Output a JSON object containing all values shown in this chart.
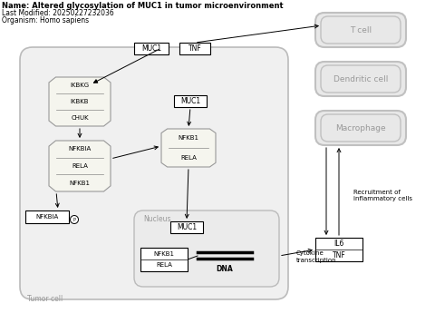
{
  "title_lines": [
    "Name: Altered glycosylation of MUC1 in tumor microenvironment",
    "Last Modified: 20250227232036",
    "Organism: Homo sapiens"
  ],
  "bg_color": "#ffffff",
  "cell_face": "#f0f0f0",
  "cell_edge": "#bbbbbb",
  "oct_face": "#f5f5ee",
  "oct_edge": "#999999",
  "nucleus_face": "#ebebeb",
  "nucleus_edge": "#bbbbbb",
  "right_cell_face": "#eeeeee",
  "right_cell_edge": "#bbbbbb"
}
